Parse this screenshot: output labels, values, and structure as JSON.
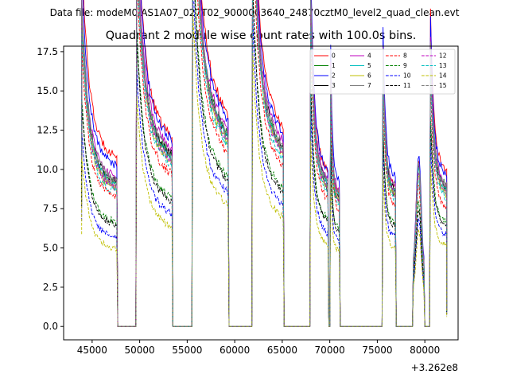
{
  "chart_data": {
    "type": "line",
    "suptitle": "Data file: modeM0/AS1A07_027T02_9000003640_24870cztM0_level2_quad_clean.evt",
    "title": "Quadrant 2 module wise count rates with 100.0s bins.",
    "xlabel": "",
    "ylabel": "",
    "x_offset_label": "+3.262e8",
    "xlim": [
      42000,
      83500
    ],
    "ylim": [
      -0.85,
      17.85
    ],
    "xticks": [
      45000,
      50000,
      55000,
      60000,
      65000,
      70000,
      75000,
      80000
    ],
    "xtick_labels": [
      "45000",
      "50000",
      "55000",
      "60000",
      "65000",
      "70000",
      "75000",
      "80000"
    ],
    "yticks": [
      0,
      2.5,
      5,
      7.5,
      10,
      12.5,
      15,
      17.5
    ],
    "ytick_labels": [
      "0.0",
      "2.5",
      "5.0",
      "7.5",
      "10.0",
      "12.5",
      "15.0",
      "17.5"
    ],
    "legend_position": "top-right",
    "legend_columns": 4,
    "bin_seconds": 100,
    "gti_segments": [
      [
        43900,
        47600
      ],
      [
        49700,
        53400
      ],
      [
        55600,
        59300
      ],
      [
        61900,
        65100
      ],
      [
        68000,
        69800
      ],
      [
        70100,
        71000
      ],
      [
        75600,
        76900
      ],
      [
        78800,
        79900
      ],
      [
        80600,
        82300
      ]
    ],
    "series": [
      {
        "name": "0",
        "color": "#ff0000",
        "dash": "solid",
        "levels": [
          10.8,
          12.0,
          13.4,
          12.6,
          9.8,
          8.4,
          9.0,
          10.2,
          9.8
        ]
      },
      {
        "name": "1",
        "color": "#008000",
        "dash": "solid",
        "levels": [
          9.1,
          10.8,
          12.1,
          11.2,
          8.7,
          7.9,
          8.4,
          9.7,
          8.9
        ]
      },
      {
        "name": "2",
        "color": "#0000ff",
        "dash": "solid",
        "levels": [
          10.2,
          11.8,
          13.0,
          12.2,
          9.9,
          9.2,
          9.6,
          10.5,
          9.6
        ]
      },
      {
        "name": "3",
        "color": "#000000",
        "dash": "solid",
        "levels": [
          9.2,
          10.8,
          12.0,
          11.4,
          9.1,
          8.4,
          8.8,
          9.8,
          8.8
        ]
      },
      {
        "name": "4",
        "color": "#bf00bf",
        "dash": "solid",
        "levels": [
          9.4,
          11.2,
          12.4,
          11.7,
          9.3,
          8.7,
          9.0,
          10.0,
          9.0
        ]
      },
      {
        "name": "5",
        "color": "#00bfbf",
        "dash": "solid",
        "levels": [
          9.0,
          10.6,
          11.9,
          11.1,
          8.9,
          8.3,
          8.6,
          9.6,
          8.6
        ]
      },
      {
        "name": "6",
        "color": "#bfbf00",
        "dash": "solid",
        "levels": [
          8.7,
          10.3,
          11.6,
          10.9,
          8.6,
          8.0,
          8.3,
          9.3,
          8.3
        ]
      },
      {
        "name": "7",
        "color": "#808080",
        "dash": "solid",
        "levels": [
          9.3,
          10.9,
          12.2,
          11.5,
          9.2,
          8.5,
          8.9,
          9.9,
          8.9
        ]
      },
      {
        "name": "8",
        "color": "#ff0000",
        "dash": "dashed",
        "levels": [
          8.1,
          9.6,
          10.9,
          10.2,
          8.0,
          7.4,
          7.7,
          8.7,
          7.6
        ]
      },
      {
        "name": "9",
        "color": "#008000",
        "dash": "dashed",
        "levels": [
          6.6,
          8.1,
          9.4,
          8.7,
          6.8,
          6.2,
          6.5,
          7.5,
          6.6
        ]
      },
      {
        "name": "10",
        "color": "#0000ff",
        "dash": "dashed",
        "levels": [
          5.6,
          7.1,
          8.4,
          7.7,
          5.9,
          5.4,
          5.7,
          6.6,
          5.8
        ]
      },
      {
        "name": "11",
        "color": "#000000",
        "dash": "dashed",
        "levels": [
          6.4,
          7.9,
          9.2,
          8.5,
          6.6,
          6.0,
          6.3,
          7.2,
          6.4
        ]
      },
      {
        "name": "12",
        "color": "#bf00bf",
        "dash": "dashed",
        "levels": [
          8.8,
          10.4,
          11.7,
          11.0,
          8.7,
          8.1,
          8.4,
          9.4,
          8.4
        ]
      },
      {
        "name": "13",
        "color": "#00bfbf",
        "dash": "dashed",
        "levels": [
          8.5,
          10.1,
          11.4,
          10.7,
          8.4,
          7.8,
          8.1,
          9.1,
          8.1
        ]
      },
      {
        "name": "14",
        "color": "#bfbf00",
        "dash": "dashed",
        "levels": [
          4.9,
          6.3,
          7.6,
          6.9,
          5.2,
          4.8,
          5.0,
          5.9,
          5.1
        ]
      },
      {
        "name": "15",
        "color": "#808080",
        "dash": "dashed",
        "levels": [
          8.9,
          10.5,
          11.8,
          11.1,
          8.8,
          8.2,
          8.5,
          9.5,
          8.5
        ]
      }
    ]
  }
}
